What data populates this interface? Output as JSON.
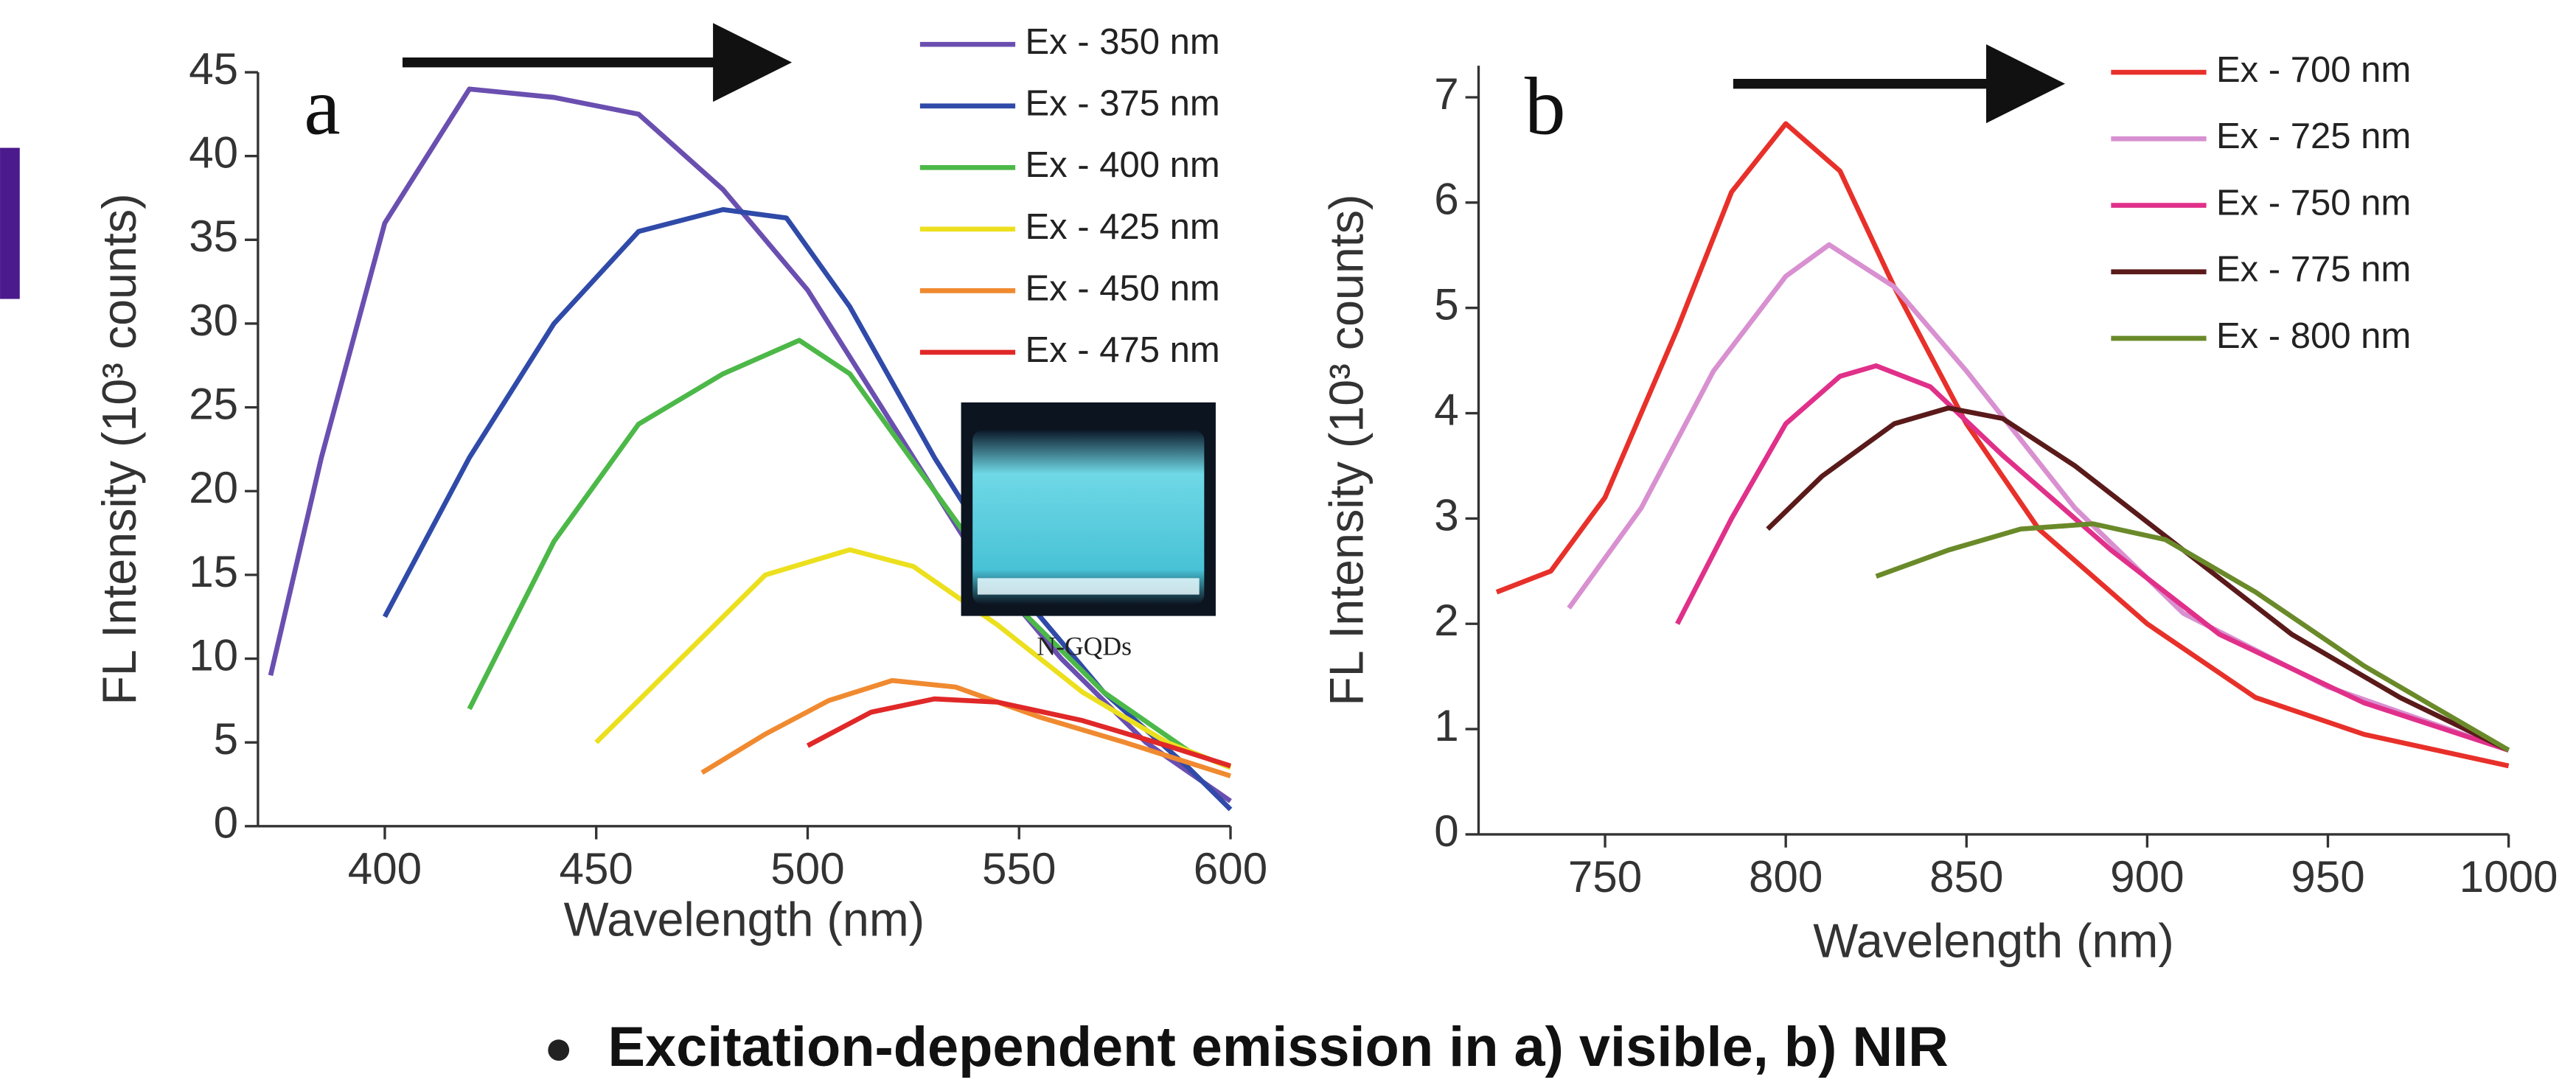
{
  "chart_data": [
    {
      "type": "line",
      "panel_label": "a",
      "x_label": "Wavelength (nm)",
      "y_label": "FL Intensity (10³ counts)",
      "xlim": [
        370,
        600
      ],
      "xticks": [
        400,
        450,
        500,
        550,
        600
      ],
      "ylim": [
        0,
        45
      ],
      "yticks": [
        0,
        5,
        10,
        15,
        20,
        25,
        30,
        35,
        40,
        45
      ],
      "legend": "upper right",
      "series": [
        {
          "name": "Ex - 350 nm",
          "color": "#6a4fb0",
          "x": [
            373,
            385,
            400,
            420,
            440,
            460,
            480,
            500,
            520,
            540,
            560,
            580,
            600
          ],
          "values": [
            9,
            22,
            36,
            44,
            43.5,
            42.5,
            38,
            32,
            24,
            16,
            10,
            5,
            1.5
          ]
        },
        {
          "name": "Ex - 375 nm",
          "color": "#2f4aa8",
          "x": [
            400,
            420,
            440,
            460,
            480,
            495,
            510,
            530,
            550,
            570,
            590,
            600
          ],
          "values": [
            12.5,
            22,
            30,
            35.5,
            36.8,
            36.3,
            31,
            22,
            14,
            8,
            3.5,
            1
          ]
        },
        {
          "name": "Ex - 400 nm",
          "color": "#4cb848",
          "x": [
            420,
            440,
            460,
            480,
            498,
            510,
            530,
            550,
            570,
            590,
            600
          ],
          "values": [
            7,
            17,
            24,
            27,
            29,
            27,
            20,
            13,
            8,
            4.5,
            3.5
          ]
        },
        {
          "name": "Ex - 425 nm",
          "color": "#ece01e",
          "x": [
            450,
            470,
            490,
            510,
            525,
            545,
            565,
            585,
            600
          ],
          "values": [
            5,
            10,
            15,
            16.5,
            15.5,
            12,
            8,
            5,
            3.5
          ]
        },
        {
          "name": "Ex - 450 nm",
          "color": "#f08a30",
          "x": [
            475,
            490,
            505,
            520,
            535,
            555,
            575,
            600
          ],
          "values": [
            3.2,
            5.5,
            7.5,
            8.7,
            8.3,
            6.5,
            5,
            3
          ]
        },
        {
          "name": "Ex - 475 nm",
          "color": "#e02828",
          "x": [
            500,
            515,
            530,
            545,
            565,
            585,
            600
          ],
          "values": [
            4.8,
            6.8,
            7.6,
            7.4,
            6.3,
            4.8,
            3.6
          ]
        }
      ]
    },
    {
      "type": "line",
      "panel_label": "b",
      "x_label": "Wavelength (nm)",
      "y_label": "FL Intensity (10³ counts)",
      "xlim": [
        715,
        1000
      ],
      "xticks": [
        750,
        800,
        850,
        900,
        950,
        1000
      ],
      "ylim": [
        0,
        7.3
      ],
      "yticks": [
        0,
        1,
        2,
        3,
        4,
        5,
        6,
        7
      ],
      "legend": "upper right",
      "series": [
        {
          "name": "Ex - 700 nm",
          "color": "#e8302a",
          "x": [
            720,
            735,
            750,
            770,
            785,
            800,
            815,
            830,
            850,
            870,
            900,
            930,
            960,
            1000
          ],
          "values": [
            2.3,
            2.5,
            3.2,
            4.8,
            6.1,
            6.75,
            6.3,
            5.2,
            3.9,
            2.9,
            2,
            1.3,
            0.95,
            0.65
          ]
        },
        {
          "name": "Ex - 725 nm",
          "color": "#d890d0",
          "x": [
            740,
            760,
            780,
            800,
            812,
            830,
            850,
            880,
            910,
            950,
            1000
          ],
          "values": [
            2.15,
            3.1,
            4.4,
            5.3,
            5.6,
            5.2,
            4.4,
            3.1,
            2.1,
            1.4,
            0.8
          ]
        },
        {
          "name": "Ex - 750 nm",
          "color": "#e0308a",
          "x": [
            770,
            785,
            800,
            815,
            825,
            840,
            860,
            890,
            920,
            960,
            1000
          ],
          "values": [
            2,
            3,
            3.9,
            4.35,
            4.45,
            4.25,
            3.6,
            2.7,
            1.9,
            1.25,
            0.8
          ]
        },
        {
          "name": "Ex - 775 nm",
          "color": "#5a1a1a",
          "x": [
            795,
            810,
            830,
            845,
            860,
            880,
            910,
            940,
            970,
            1000
          ],
          "values": [
            2.9,
            3.4,
            3.9,
            4.05,
            3.95,
            3.5,
            2.7,
            1.9,
            1.3,
            0.8
          ]
        },
        {
          "name": "Ex - 800 nm",
          "color": "#6a8a2a",
          "x": [
            825,
            845,
            865,
            885,
            905,
            930,
            960,
            980,
            1000
          ],
          "values": [
            2.45,
            2.7,
            2.9,
            2.95,
            2.8,
            2.3,
            1.6,
            1.2,
            0.8
          ]
        }
      ]
    }
  ],
  "inset_label": "N-GQDs",
  "caption": "Excitation-dependent emission in a) visible, b) NIR"
}
